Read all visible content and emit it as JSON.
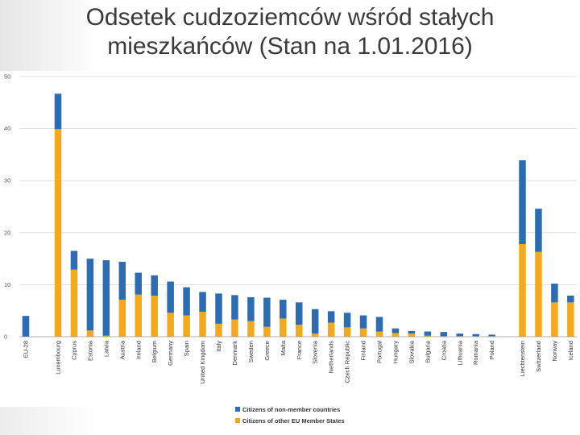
{
  "title_line1": "Odsetek cudzoziemców wśród stałych",
  "title_line2": "mieszkańców (Stan na 1.01.2016)",
  "chart_data": {
    "type": "bar",
    "stacked": true,
    "title": "Odsetek cudzoziemców wśród stałych mieszkańców (Stan na 1.01.2016)",
    "ylim": [
      0,
      50
    ],
    "yticks": [
      0,
      10,
      20,
      30,
      40,
      50
    ],
    "grid": true,
    "legend_position": "bottom",
    "categories": [
      "EU-28",
      "Luxembourg",
      "Cyprus",
      "Estonia",
      "Latvia",
      "Austria",
      "Ireland",
      "Belgium",
      "Germany",
      "Spain",
      "United Kingdom",
      "Italy",
      "Denmark",
      "Sweden",
      "Greece",
      "Malta",
      "France",
      "Slovenia",
      "Netherlands",
      "Czech Republic",
      "Finland",
      "Portugal",
      "Hungary",
      "Slovakia",
      "Bulgaria",
      "Croatia",
      "Lithuania",
      "Romania",
      "Poland",
      "Liechtenstein",
      "Switzerland",
      "Norway",
      "Iceland"
    ],
    "series": [
      {
        "name": "Citizens of other EU Member States",
        "color": "#f5a81c",
        "values": [
          0,
          39.9,
          12.9,
          1.2,
          0.2,
          7.1,
          8.1,
          7.9,
          4.6,
          4.1,
          4.8,
          2.5,
          3.3,
          3.0,
          1.9,
          3.5,
          2.3,
          0.6,
          2.7,
          1.8,
          1.6,
          1.0,
          0.7,
          0.6,
          0.2,
          0.1,
          0.1,
          0.1,
          0.1,
          17.8,
          16.3,
          6.6,
          6.6
        ]
      },
      {
        "name": "Citizens of non-member countries",
        "color": "#2c6cb5",
        "values": [
          4.0,
          6.8,
          3.6,
          13.8,
          14.5,
          7.3,
          4.2,
          3.9,
          6.0,
          5.4,
          3.8,
          5.8,
          4.7,
          4.6,
          5.6,
          3.6,
          4.3,
          4.7,
          2.2,
          2.8,
          2.5,
          2.8,
          0.9,
          0.5,
          0.8,
          0.8,
          0.5,
          0.4,
          0.3,
          16.1,
          8.3,
          3.6,
          1.3
        ]
      }
    ]
  }
}
